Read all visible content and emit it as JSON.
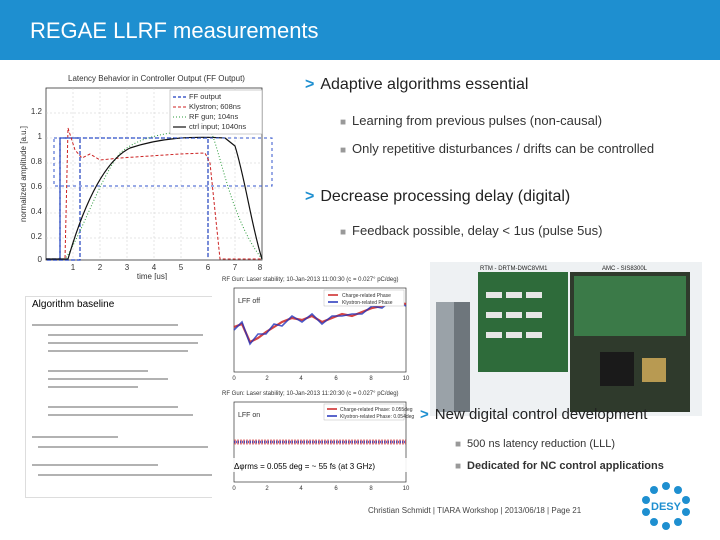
{
  "header": {
    "title": "REGAE LLRF measurements"
  },
  "bullets": {
    "adaptive": "Adaptive algorithms essential",
    "learning": "Learning from previous pulses (non-causal)",
    "repetitive": "Only repetitive disturbances / drifts can be controlled",
    "delay": "Decrease processing delay (digital)",
    "feedback": "Feedback possible, delay < 1us (pulse 5us)",
    "new_dev": "New digital control development",
    "latency": "500 ns latency reduction (LLL)",
    "dedicated": "Dedicated for NC control applications"
  },
  "top_plot": {
    "title": "Latency Behavior in Controller Output (FF Output)",
    "ylabel": "normalized amplitude [a.u.]",
    "xlabel": "time [us]",
    "xticks": [
      "1",
      "2",
      "3",
      "4",
      "5",
      "6",
      "7",
      "8"
    ],
    "yticks": [
      "0",
      "0.2",
      "0.4",
      "0.6",
      "0.8",
      "1",
      "1.2"
    ],
    "legend": [
      "FF output",
      "Klystron; 608ns",
      "RF gun; 104ns",
      "ctrl input; 1040ns"
    ],
    "colors": {
      "ff": "#1f3fbf",
      "klystron": "#cc2222",
      "gun": "#2a9a3a",
      "ctrl": "#111111"
    }
  },
  "mid_plot": {
    "title": "RF Gun: Laser stability; 10-Jan-2013 11:00:30 (c = 0.027° pC/deg)",
    "label": "LFF off",
    "legend": [
      "Charge-related Phase",
      "Klystron-related Phase"
    ]
  },
  "low_plot": {
    "title": "RF Gun: Laser stability; 10-Jan-2013 11:20:30 (c = 0.027° pC/deg)",
    "label": "LFF on",
    "legend": [
      "Charge-related Phase: 0.055deg",
      "Klystron-related Phase: 0.054deg"
    ],
    "annotation": "Δφrms = 0.055 deg = ~ 55 fs (at 3 GHz)"
  },
  "algorithm": {
    "title": "Algorithm baseline"
  },
  "board": {
    "left_label": "RTM - DRTM-DWC8VM1",
    "right_label": "AMC - SIS8300L"
  },
  "footer": "Christian Schmidt | TIARA Workshop | 2013/06/18 | Page 21",
  "logo": {
    "text": "DESY",
    "icon": "desy-logo-icon"
  }
}
